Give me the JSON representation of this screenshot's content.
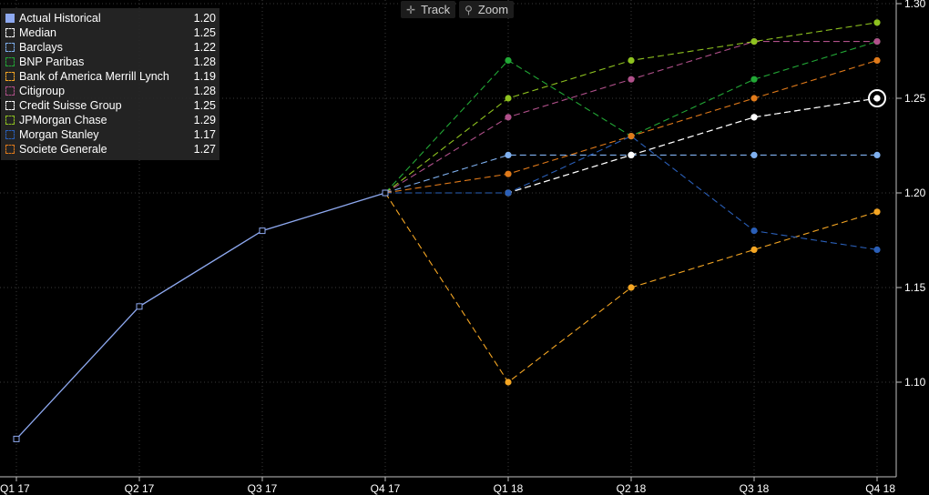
{
  "toolbar": {
    "track_label": "Track",
    "zoom_label": "Zoom",
    "track_icon": "crosshair-icon",
    "zoom_icon": "magnifier-icon"
  },
  "chart_data": {
    "type": "line",
    "categories": [
      "Q1 17",
      "Q2 17",
      "Q3 17",
      "Q4 17",
      "Q1 18",
      "Q2 18",
      "Q3 18",
      "Q4 18"
    ],
    "y_ticks": [
      "1.10",
      "1.15",
      "1.20",
      "1.25",
      "1.30"
    ],
    "ylim": [
      1.05,
      1.3
    ],
    "grid": true,
    "legend_position": "top-left",
    "series": [
      {
        "name": "Actual Historical",
        "legend_value": "1.20",
        "color": "#8ea9f0",
        "dashed": false,
        "values": [
          1.07,
          1.14,
          1.18,
          1.2,
          null,
          null,
          null,
          null
        ]
      },
      {
        "name": "Median",
        "legend_value": "1.25",
        "color": "#ffffff",
        "dashed": true,
        "values": [
          null,
          null,
          null,
          1.2,
          1.2,
          1.22,
          1.24,
          1.25
        ]
      },
      {
        "name": "Barclays",
        "legend_value": "1.22",
        "color": "#7fb0ef",
        "dashed": true,
        "values": [
          null,
          null,
          null,
          1.2,
          1.22,
          1.22,
          1.22,
          1.22
        ]
      },
      {
        "name": "BNP Paribas",
        "legend_value": "1.28",
        "color": "#22a836",
        "dashed": true,
        "values": [
          null,
          null,
          null,
          1.2,
          1.27,
          1.23,
          1.26,
          1.28
        ]
      },
      {
        "name": "Bank of America Merrill Lynch",
        "legend_value": "1.19",
        "color": "#f5a623",
        "dashed": true,
        "values": [
          null,
          null,
          null,
          1.2,
          1.1,
          1.15,
          1.17,
          1.19
        ]
      },
      {
        "name": "Citigroup",
        "legend_value": "1.28",
        "color": "#b0508a",
        "dashed": true,
        "values": [
          null,
          null,
          null,
          1.2,
          1.24,
          1.26,
          1.28,
          1.28
        ]
      },
      {
        "name": "Credit Suisse Group",
        "legend_value": "1.25",
        "color": "#ffffff",
        "dashed": true,
        "values": [
          null,
          null,
          null,
          1.2,
          1.2,
          1.22,
          1.24,
          1.25
        ]
      },
      {
        "name": "JPMorgan Chase",
        "legend_value": "1.29",
        "color": "#8ec21f",
        "dashed": true,
        "values": [
          null,
          null,
          null,
          1.2,
          1.25,
          1.27,
          1.28,
          1.29
        ]
      },
      {
        "name": "Morgan Stanley",
        "legend_value": "1.17",
        "color": "#2a5fb8",
        "dashed": true,
        "values": [
          null,
          null,
          null,
          1.2,
          1.2,
          1.23,
          1.18,
          1.17
        ]
      },
      {
        "name": "Societe Generale",
        "legend_value": "1.27",
        "color": "#e07a1a",
        "dashed": true,
        "values": [
          null,
          null,
          null,
          1.2,
          1.21,
          1.23,
          1.25,
          1.27
        ]
      }
    ]
  }
}
